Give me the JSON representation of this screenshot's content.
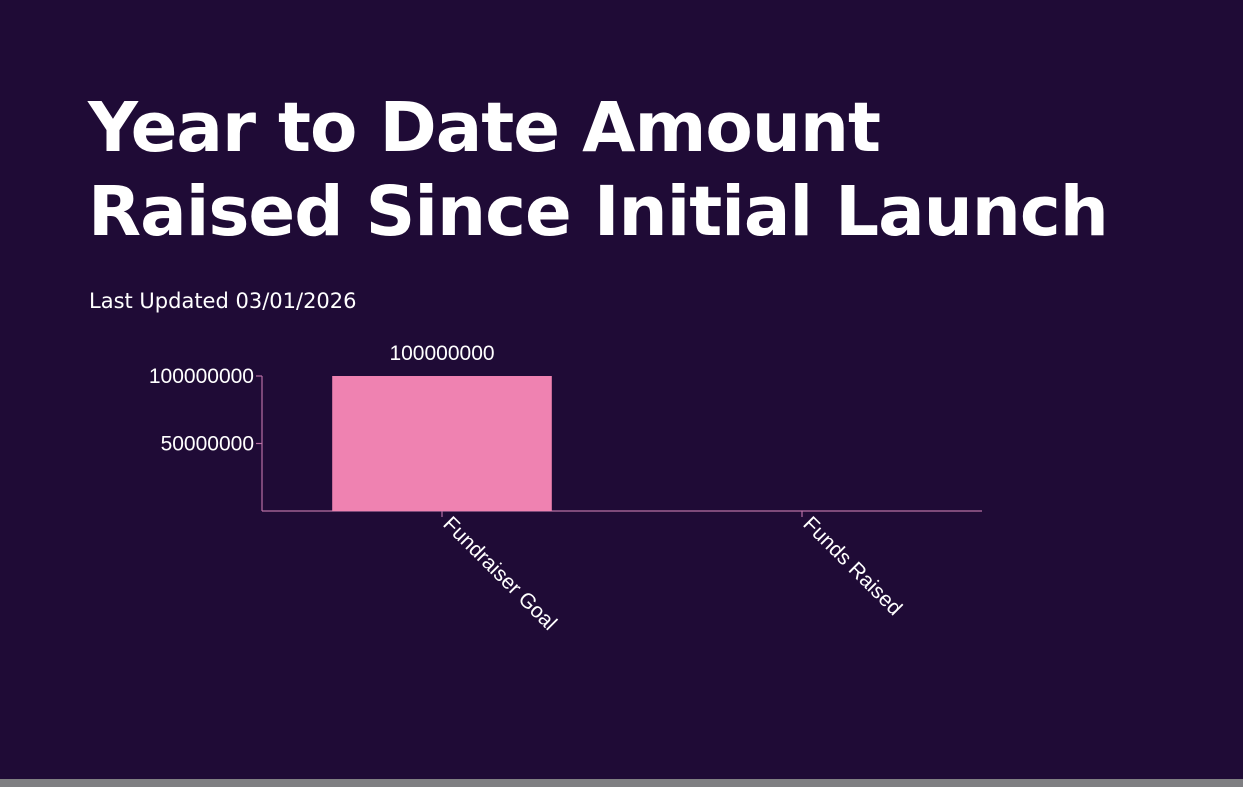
{
  "header": {
    "title": "Year to Date Amount\nRaised Since Initial Launch",
    "subtitle": "Last Updated 03/01/2026"
  },
  "colors": {
    "background": "#1f0b36",
    "bar": "#ef82b1",
    "axis": "#b86fa4",
    "text": "#ffffff"
  },
  "chart_data": {
    "type": "bar",
    "categories": [
      "Fundraiser Goal",
      "Funds Raised"
    ],
    "values": [
      100000000,
      0
    ],
    "data_labels": [
      "100000000",
      ""
    ],
    "y_ticks": [
      {
        "value": 100000000,
        "label": "100000000"
      },
      {
        "value": 50000000,
        "label": "50000000"
      }
    ],
    "ylim": [
      0,
      100000000
    ],
    "grid": false,
    "legend": "none",
    "xlabel": "",
    "ylabel": "",
    "x_tick_rotation": 45
  }
}
